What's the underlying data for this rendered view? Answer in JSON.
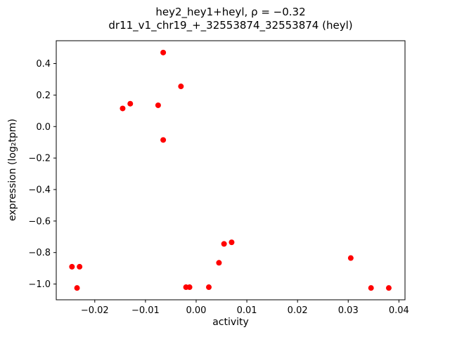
{
  "figure": {
    "title_line1": "hey2_hey1+heyl, ρ = −0.32",
    "title_line2": "dr11_v1_chr19_+_32553874_32553874 (heyl)"
  },
  "chart_data": {
    "type": "scatter",
    "title": "hey2_hey1+heyl, ρ = −0.32",
    "subtitle": "dr11_v1_chr19_+_32553874_32553874 (heyl)",
    "xlabel": "activity",
    "ylabel": "expression (log₂tpm)",
    "xlim": [
      -0.0276,
      0.0412
    ],
    "ylim": [
      -1.1,
      0.545
    ],
    "x_ticks": [
      -0.02,
      -0.01,
      0.0,
      0.01,
      0.02,
      0.03,
      0.04
    ],
    "y_ticks": [
      0.4,
      0.2,
      0.0,
      -0.2,
      -0.4,
      -0.6,
      -0.8,
      -1.0
    ],
    "grid": false,
    "legend": "none",
    "marker_color": "#ff0000",
    "marker_radius": 4,
    "points": [
      [
        -0.0245,
        -0.89
      ],
      [
        -0.023,
        -0.89
      ],
      [
        -0.0235,
        -1.025
      ],
      [
        -0.0145,
        0.115
      ],
      [
        -0.013,
        0.145
      ],
      [
        -0.0075,
        0.135
      ],
      [
        -0.0065,
        0.47
      ],
      [
        -0.0065,
        -0.085
      ],
      [
        -0.003,
        0.255
      ],
      [
        -0.002,
        -1.02
      ],
      [
        -0.0013,
        -1.02
      ],
      [
        0.0025,
        -1.02
      ],
      [
        0.0045,
        -0.865
      ],
      [
        0.0055,
        -0.745
      ],
      [
        0.007,
        -0.735
      ],
      [
        0.0305,
        -0.835
      ],
      [
        0.0345,
        -1.025
      ],
      [
        0.038,
        -1.025
      ]
    ]
  }
}
